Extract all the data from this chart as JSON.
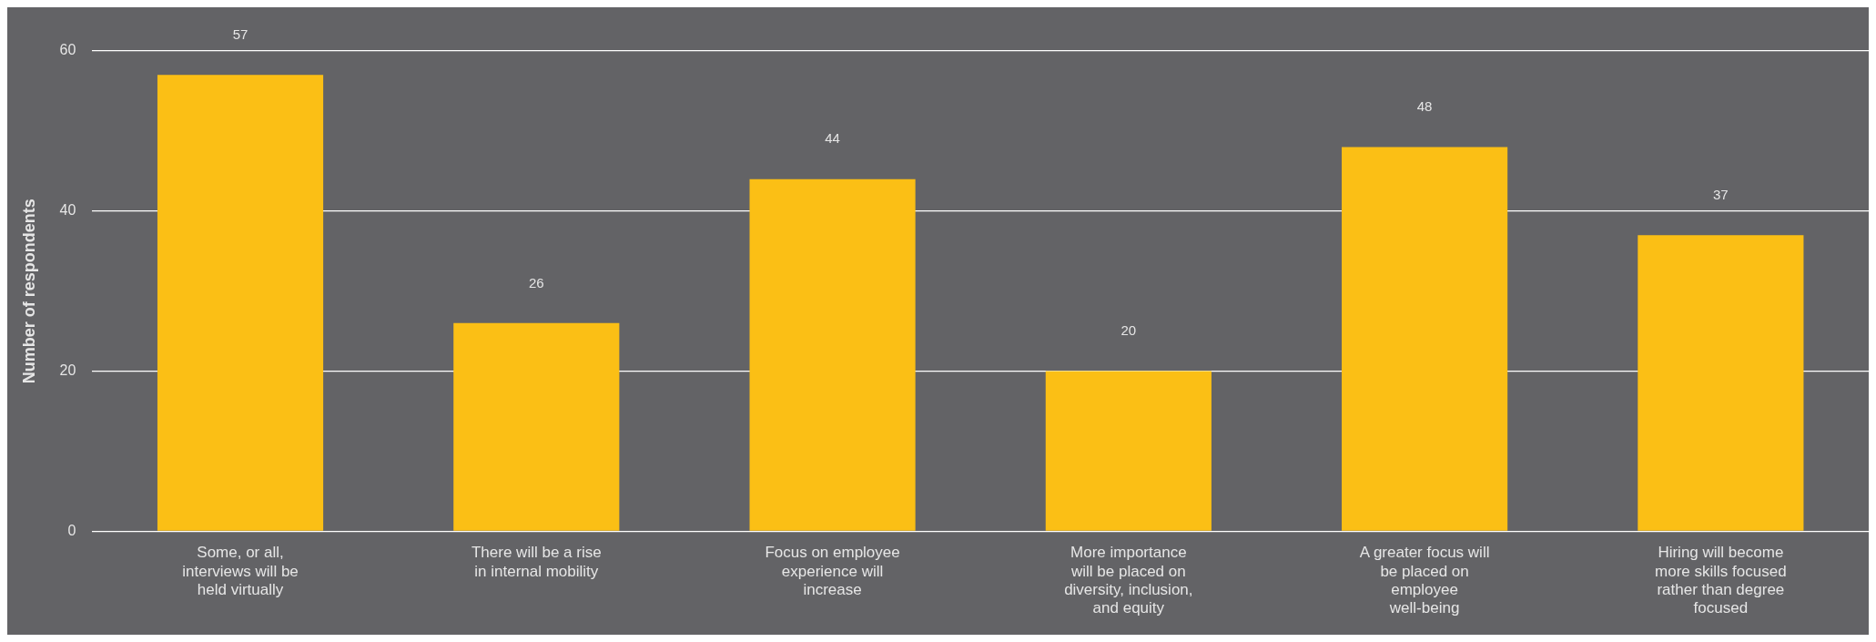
{
  "chart_data": {
    "type": "bar",
    "ylabel": "Number of respondents",
    "categories": [
      "Some, or all, interviews will be held virtually",
      "There will be a rise in internal mobility",
      "Focus on employee experience will increase",
      "More importance will be placed on diversity, inclusion, and equity",
      "A greater focus will be placed on employee well-being",
      "Hiring will become more skills focused rather than degree focused"
    ],
    "values": [
      57,
      26,
      44,
      20,
      48,
      37
    ],
    "color": "#fbbf15",
    "ylim": [
      0,
      60
    ],
    "yticks": [
      0,
      20,
      40,
      60
    ],
    "grid": "y",
    "data_labels": true
  }
}
